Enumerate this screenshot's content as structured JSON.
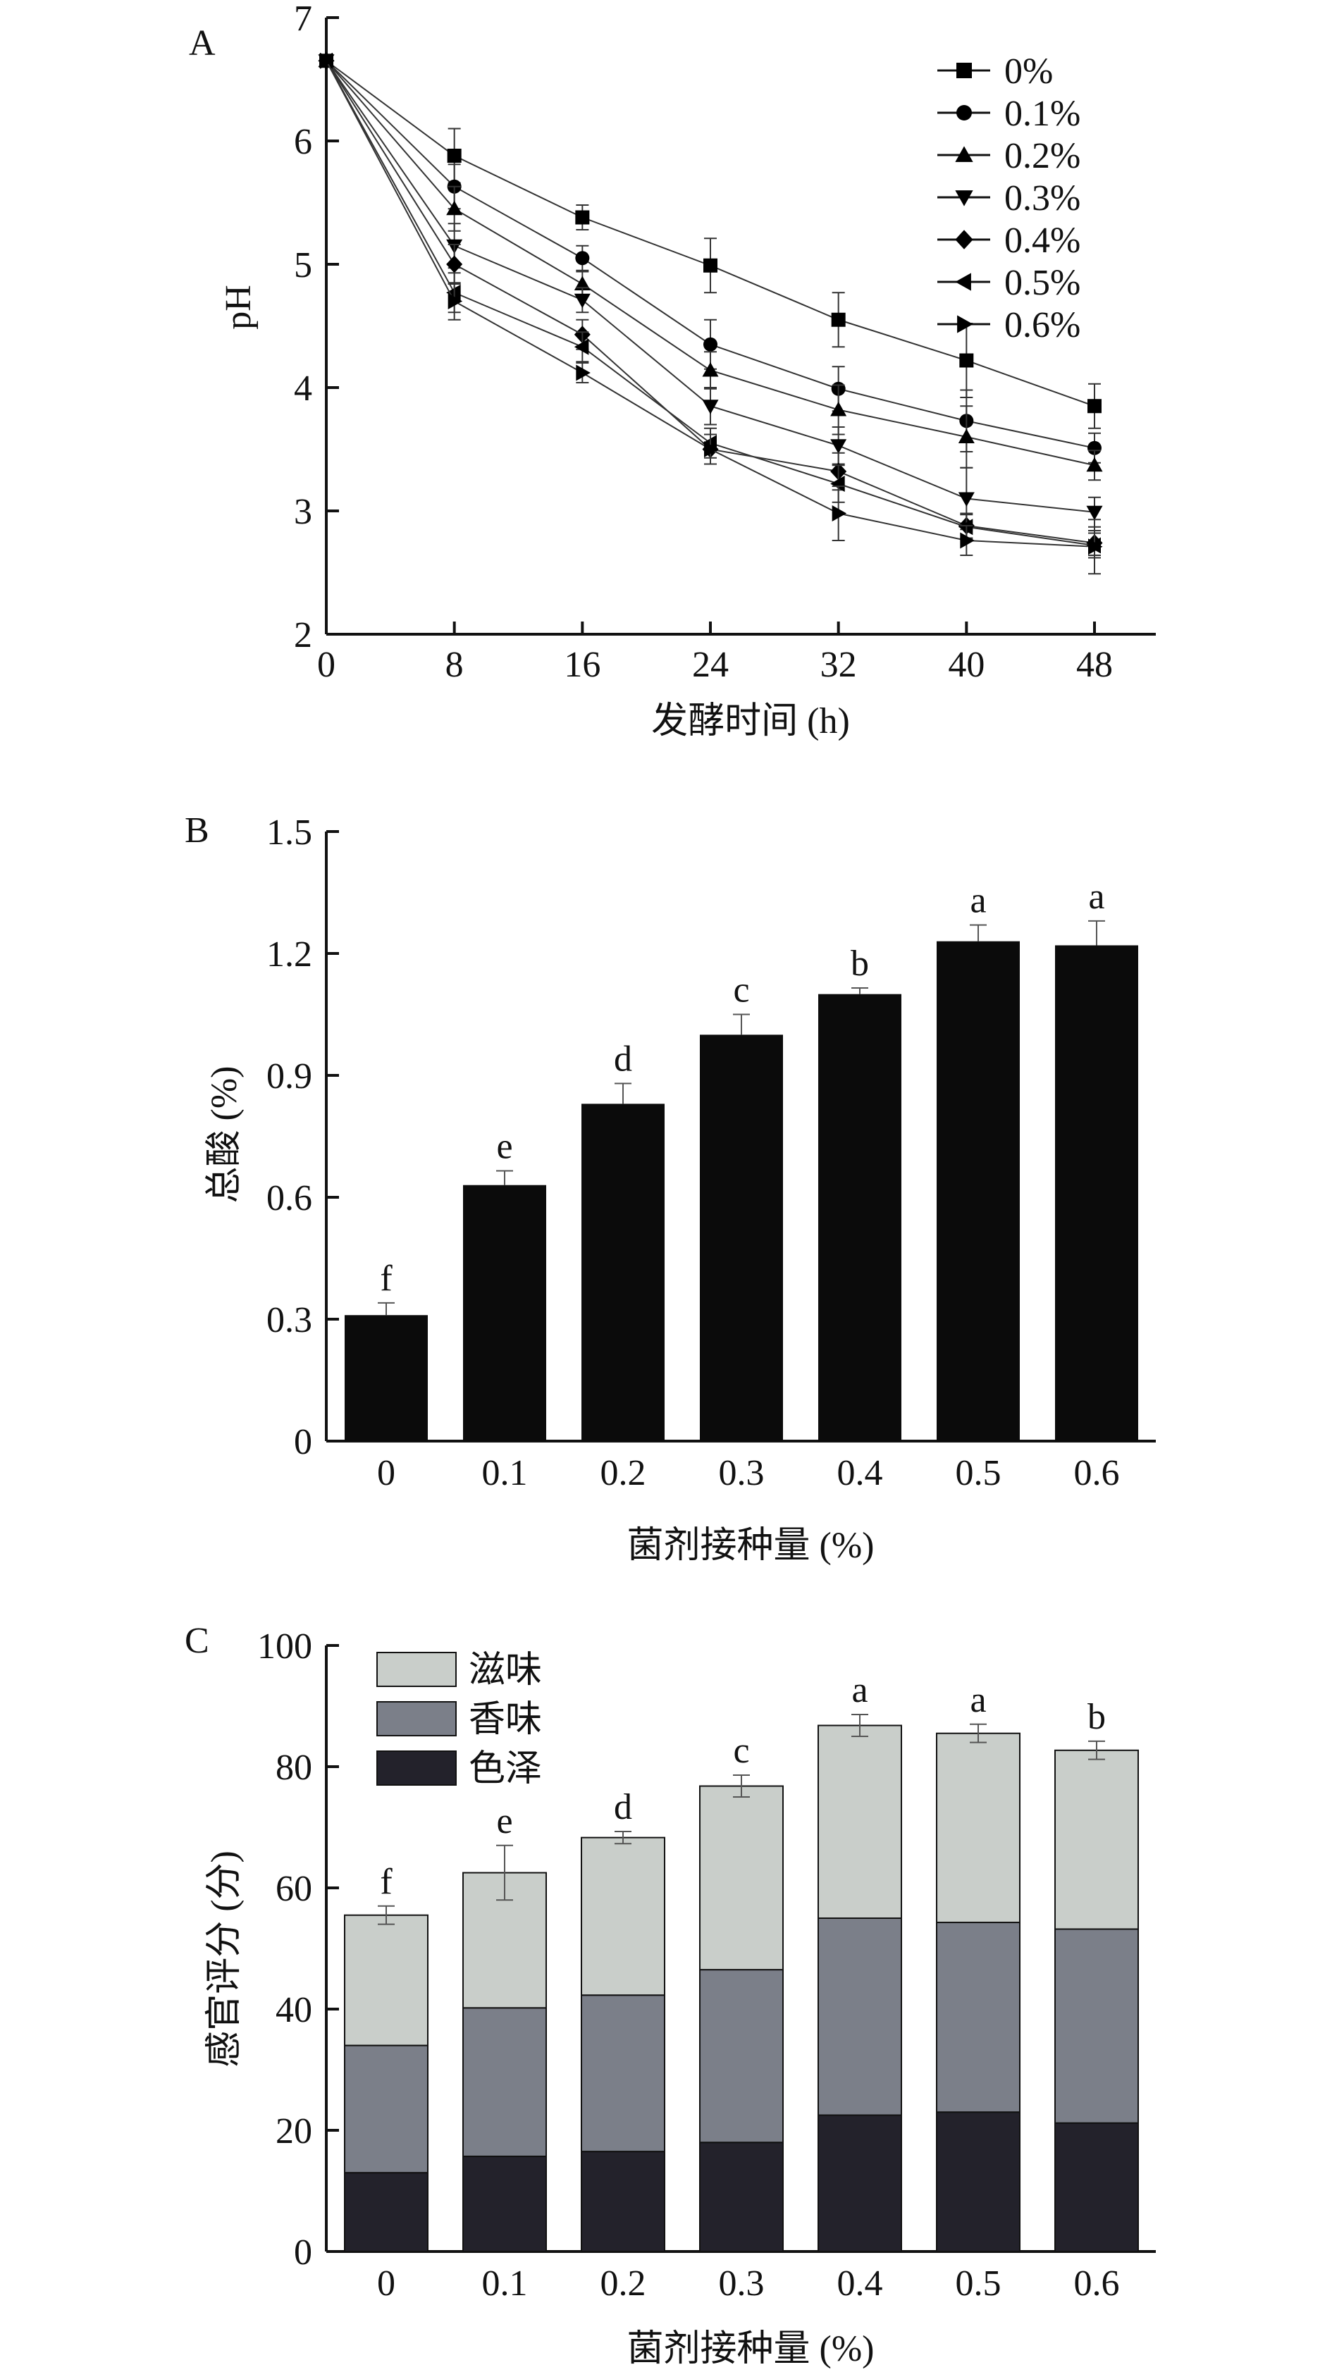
{
  "chart_data": [
    {
      "panel_label": "A",
      "type": "line",
      "xlabel": "发酵时间 (h)",
      "ylabel": "pH",
      "xlim": [
        0,
        48
      ],
      "ylim": [
        2,
        7
      ],
      "xticks": [
        0,
        8,
        16,
        24,
        32,
        40,
        48
      ],
      "yticks": [
        2,
        3,
        4,
        5,
        6,
        7
      ],
      "legend_position": "top-right",
      "x": [
        0,
        8,
        16,
        24,
        32,
        40,
        48
      ],
      "series": [
        {
          "name": "0%",
          "marker": "square",
          "values": [
            6.65,
            5.88,
            5.38,
            4.99,
            4.55,
            4.22,
            3.85
          ],
          "errors": [
            0,
            0.22,
            0.1,
            0.22,
            0.22,
            0.3,
            0.18
          ]
        },
        {
          "name": "0.1%",
          "marker": "circle",
          "values": [
            6.65,
            5.63,
            5.05,
            4.35,
            3.99,
            3.73,
            3.51
          ],
          "errors": [
            0,
            0.18,
            0.1,
            0.2,
            0.18,
            0.25,
            0.12
          ]
        },
        {
          "name": "0.2%",
          "marker": "triangle-up",
          "values": [
            6.65,
            5.45,
            4.84,
            4.14,
            3.82,
            3.6,
            3.37
          ],
          "errors": [
            0,
            0.18,
            0.1,
            0.15,
            0.2,
            0.25,
            0.12
          ]
        },
        {
          "name": "0.3%",
          "marker": "triangle-down",
          "values": [
            6.65,
            5.15,
            4.71,
            3.85,
            3.53,
            3.1,
            2.99
          ],
          "errors": [
            0,
            0.18,
            0.1,
            0.15,
            0.15,
            0.25,
            0.12
          ]
        },
        {
          "name": "0.4%",
          "marker": "diamond",
          "values": [
            6.65,
            5.0,
            4.43,
            3.5,
            3.32,
            2.88,
            2.74
          ],
          "errors": [
            0,
            0.16,
            0.12,
            0.12,
            0.15,
            0.1,
            0.1
          ]
        },
        {
          "name": "0.5%",
          "marker": "triangle-left",
          "values": [
            6.65,
            4.77,
            4.33,
            3.55,
            3.22,
            2.87,
            2.72
          ],
          "errors": [
            0,
            0.16,
            0.12,
            0.12,
            0.15,
            0.1,
            0.1
          ]
        },
        {
          "name": "0.6%",
          "marker": "triangle-right",
          "values": [
            6.65,
            4.7,
            4.12,
            3.5,
            2.98,
            2.76,
            2.71
          ],
          "errors": [
            0,
            0.15,
            0.08,
            0.12,
            0.22,
            0.12,
            0.22
          ]
        }
      ]
    },
    {
      "panel_label": "B",
      "type": "bar",
      "xlabel": "菌剂接种量 (%)",
      "ylabel": "总酸 (%)",
      "ylim": [
        0,
        1.5
      ],
      "yticks": [
        "0",
        "0.3",
        "0.6",
        "0.9",
        "1.2",
        "1.5"
      ],
      "categories": [
        "0",
        "0.1",
        "0.2",
        "0.3",
        "0.4",
        "0.5",
        "0.6"
      ],
      "values": [
        0.31,
        0.63,
        0.83,
        1.0,
        1.1,
        1.23,
        1.22
      ],
      "errors": [
        0.03,
        0.035,
        0.05,
        0.05,
        0.015,
        0.04,
        0.06
      ],
      "letters": [
        "f",
        "e",
        "d",
        "c",
        "b",
        "a",
        "a"
      ],
      "bar_color": "#0b0b0b"
    },
    {
      "panel_label": "C",
      "type": "bar",
      "stacked": true,
      "xlabel": "菌剂接种量 (%)",
      "ylabel": "感官评分 (分)",
      "ylim": [
        0,
        100
      ],
      "yticks": [
        "0",
        "20",
        "40",
        "60",
        "80",
        "100"
      ],
      "legend_position": "top-left",
      "categories": [
        "0",
        "0.1",
        "0.2",
        "0.3",
        "0.4",
        "0.5",
        "0.6"
      ],
      "series": [
        {
          "name": "色泽",
          "color": "#23222b",
          "values": [
            13,
            15.7,
            16.5,
            18,
            22.5,
            23,
            21.2
          ]
        },
        {
          "name": "香味",
          "color": "#7b7f89",
          "values": [
            21,
            24.5,
            25.8,
            28.5,
            32.5,
            31.3,
            32
          ]
        },
        {
          "name": "滋味",
          "color": "#c9ceca",
          "values": [
            21.5,
            22.3,
            26,
            30.3,
            31.8,
            31.2,
            29.5
          ]
        }
      ],
      "totals": [
        55.5,
        62.5,
        68.3,
        76.8,
        86.8,
        85.5,
        82.7
      ],
      "errors": [
        1.5,
        4.5,
        1.0,
        1.8,
        1.8,
        1.5,
        1.5
      ],
      "letters": [
        "f",
        "e",
        "d",
        "c",
        "a",
        "a",
        "b"
      ]
    }
  ]
}
